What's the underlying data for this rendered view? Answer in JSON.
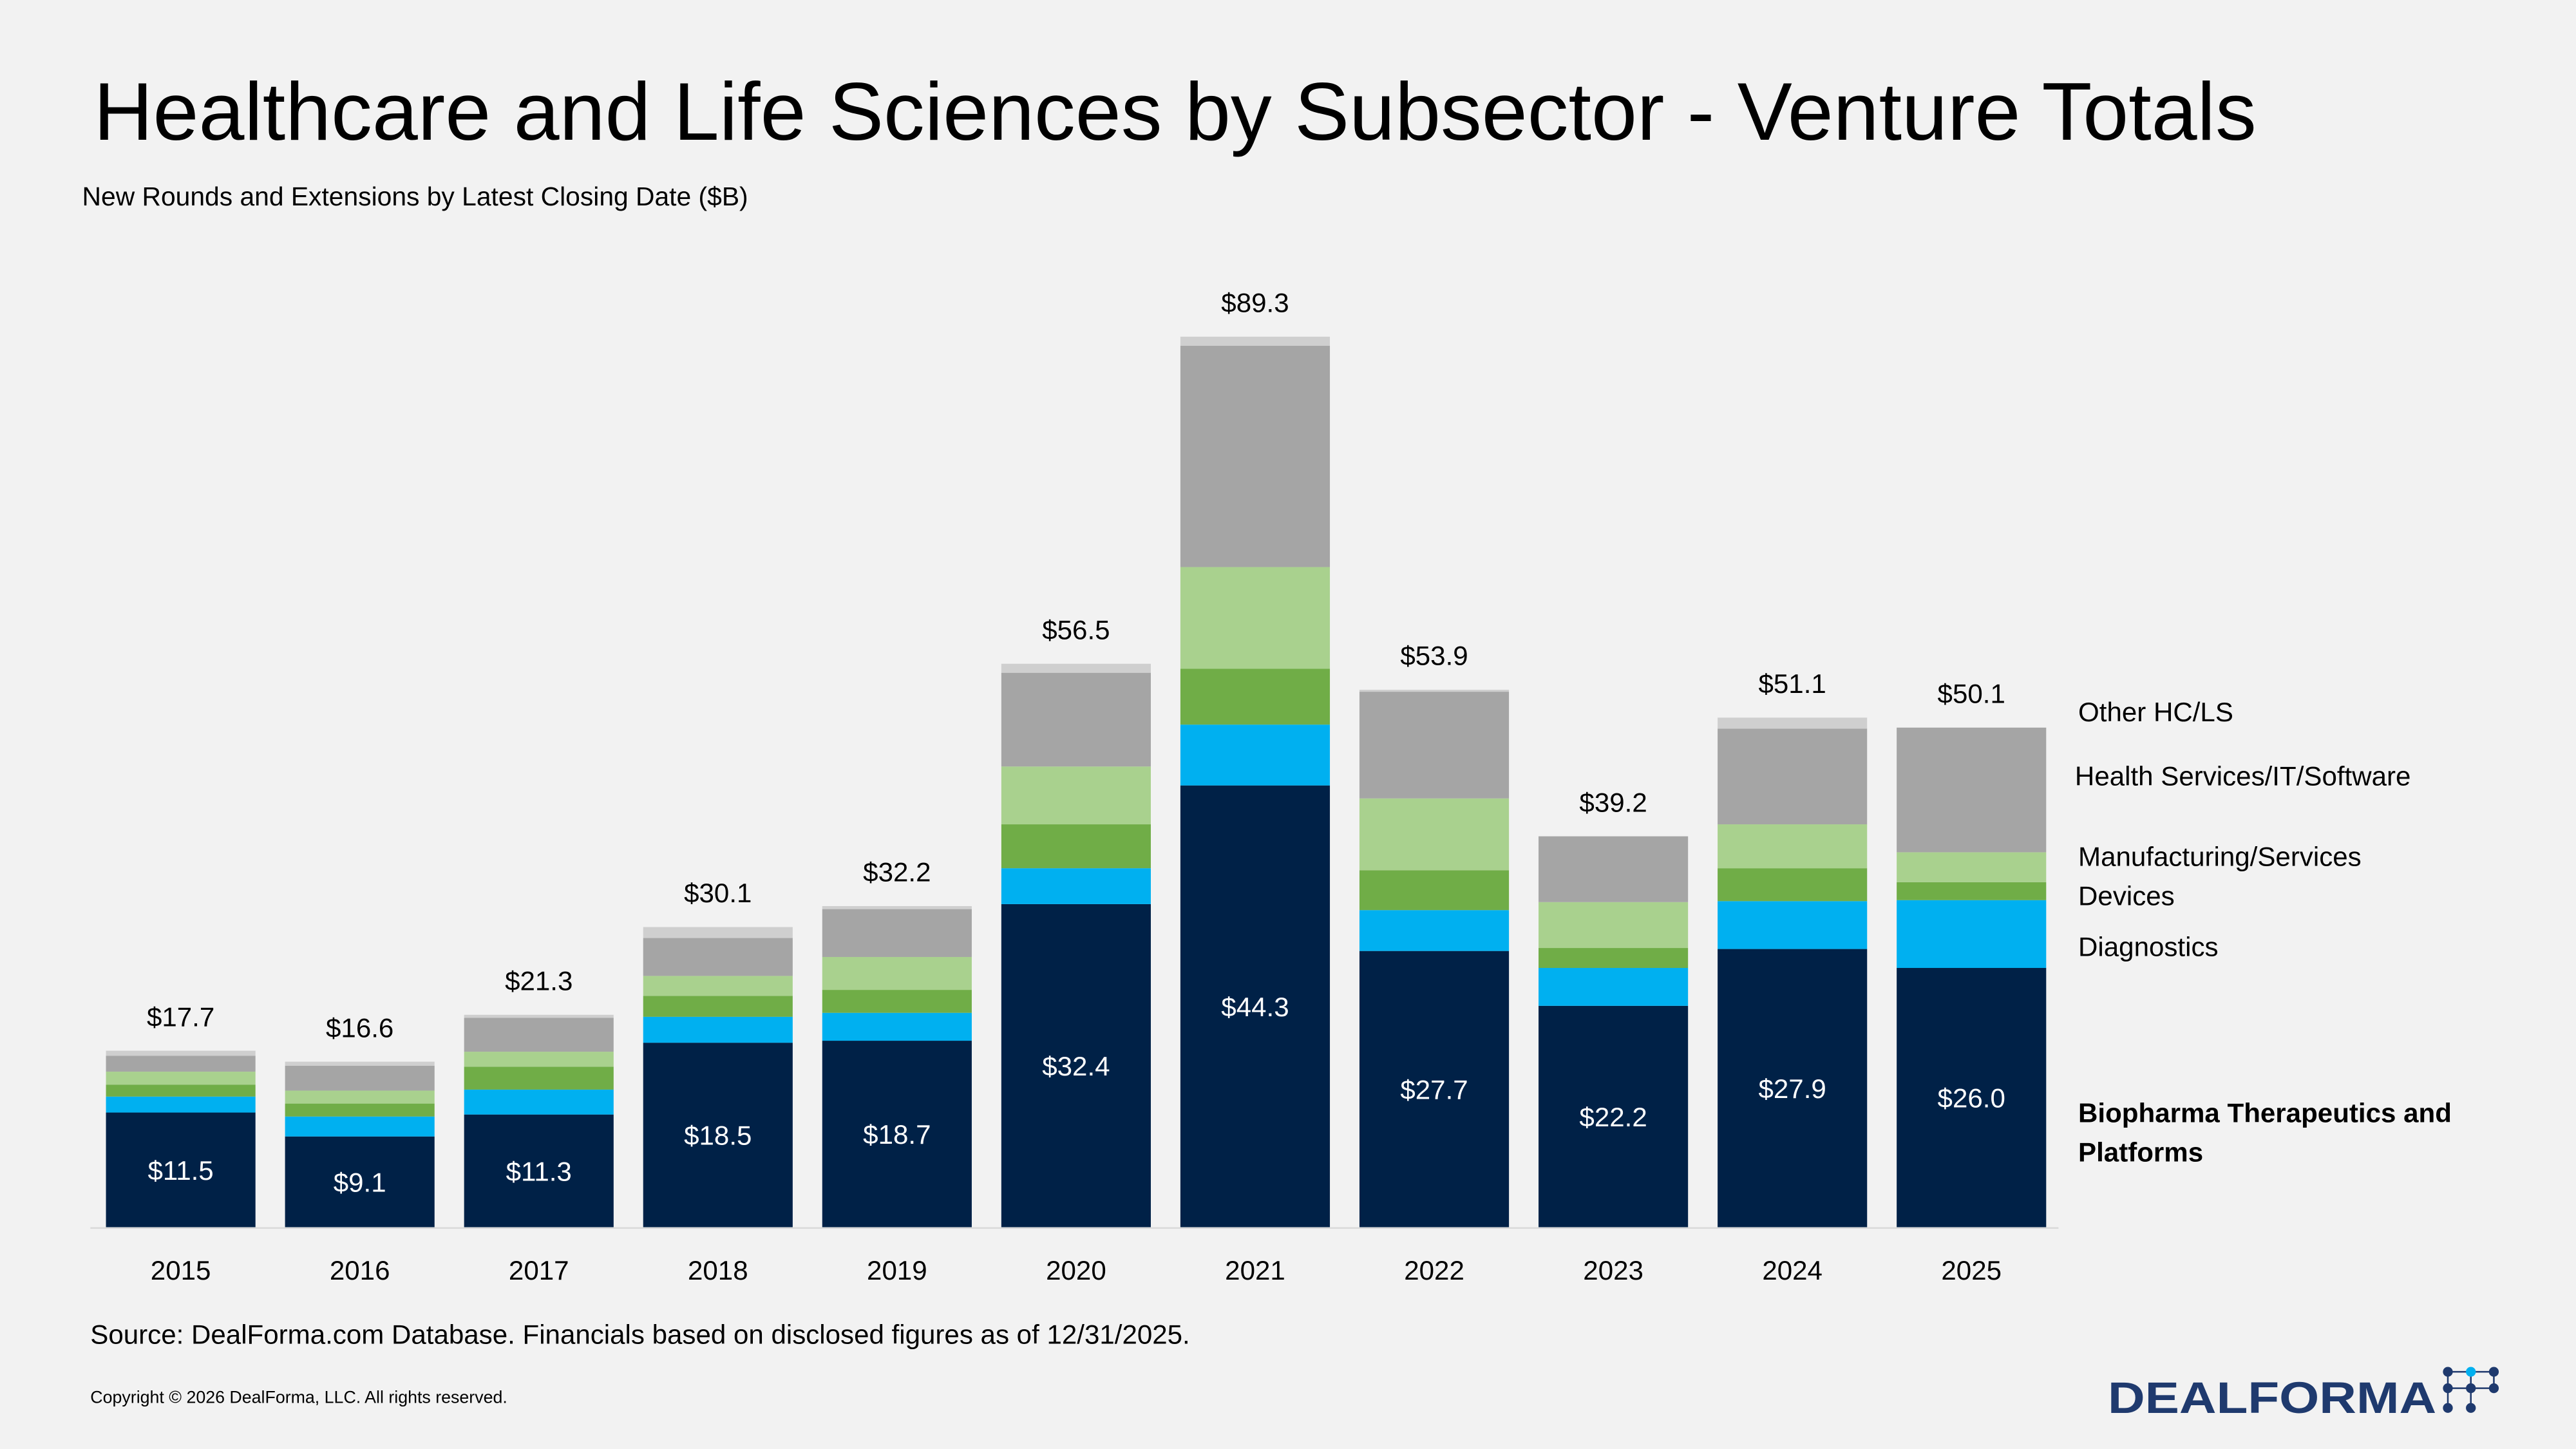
{
  "title": "Healthcare and Life Sciences by Subsector - Venture Totals",
  "subtitle": "New Rounds and Extensions by Latest Closing Date ($B)",
  "source": "Source: DealForma.com Database. Financials based on disclosed figures as of 12/31/2025.",
  "copyright": "Copyright © 2026 DealForma, LLC. All rights reserved.",
  "logo_text": "DEALFORMA",
  "chart_data": {
    "type": "bar",
    "stacked": true,
    "categories": [
      "2015",
      "2016",
      "2017",
      "2018",
      "2019",
      "2020",
      "2021",
      "2022",
      "2023",
      "2024",
      "2025"
    ],
    "ylim": [
      0,
      95
    ],
    "grid": false,
    "legend_placement": "right",
    "series": [
      {
        "name": "Biopharma Therapeutics and Platforms",
        "color": "#002147",
        "values": [
          11.5,
          9.1,
          11.3,
          18.5,
          18.7,
          32.4,
          44.3,
          27.7,
          22.2,
          27.9,
          26.0
        ],
        "labels": [
          "$11.5",
          "$9.1",
          "$11.3",
          "$18.5",
          "$18.7",
          "$32.4",
          "$44.3",
          "$27.7",
          "$22.2",
          "$27.9",
          "$26.0"
        ]
      },
      {
        "name": "Diagnostics",
        "color": "#00B0F0",
        "values": [
          1.6,
          2.0,
          2.5,
          2.6,
          2.8,
          3.6,
          6.1,
          4.1,
          3.8,
          4.8,
          6.8
        ]
      },
      {
        "name": "Devices",
        "color": "#70AD47",
        "values": [
          1.2,
          1.3,
          2.3,
          2.1,
          2.3,
          4.4,
          5.6,
          4.0,
          2.0,
          3.3,
          1.8
        ]
      },
      {
        "name": "Manufacturing/Services",
        "color": "#A9D18E",
        "values": [
          1.3,
          1.3,
          1.5,
          2.0,
          3.3,
          5.8,
          10.2,
          7.2,
          4.6,
          4.4,
          3.0
        ]
      },
      {
        "name": "Health Services/IT/Software",
        "color": "#A5A5A5",
        "values": [
          1.6,
          2.5,
          3.4,
          3.8,
          4.8,
          9.4,
          22.2,
          10.7,
          6.6,
          9.6,
          12.5
        ]
      },
      {
        "name": "Other HC/LS",
        "color": "#CFCFCF",
        "values": [
          0.5,
          0.4,
          0.3,
          1.1,
          0.3,
          0.9,
          0.9,
          0.2,
          0.0,
          1.1,
          0.0
        ]
      }
    ],
    "totals": [
      "$17.7",
      "$16.6",
      "$21.3",
      "$30.1",
      "$32.2",
      "$56.5",
      "$89.3",
      "$53.9",
      "$39.2",
      "$51.1",
      "$50.1"
    ],
    "legend_lines": {
      "other": "Other HC/LS",
      "health": "Health Services/IT/Software",
      "manufacturing": "Manufacturing/Services",
      "devices": "Devices",
      "diagnostics": "Diagnostics",
      "biopharma_1": "Biopharma Therapeutics and",
      "biopharma_2": "Platforms"
    }
  }
}
